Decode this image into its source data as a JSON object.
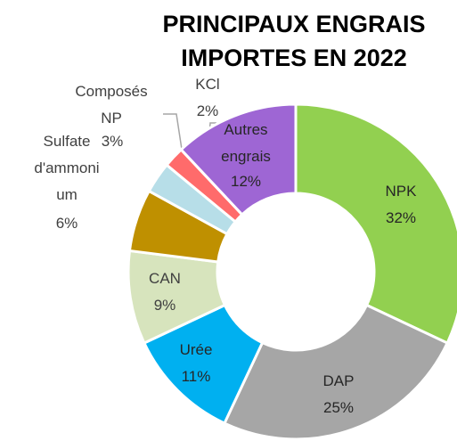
{
  "chart_data": {
    "type": "donut",
    "title": "PRINCIPAUX ENGRAIS IMPORTES EN 2022",
    "categories": [
      "NPK",
      "DAP",
      "Urée",
      "CAN",
      "Sulfate d'ammonium",
      "Composés NP",
      "KCl",
      "Autres engrais"
    ],
    "values": [
      32,
      25,
      11,
      9,
      6,
      3,
      2,
      12
    ],
    "value_labels": [
      "32%",
      "25%",
      "11%",
      "9%",
      "6%",
      "3%",
      "2%",
      "12%"
    ],
    "colors": [
      "#92d050",
      "#a6a6a6",
      "#00b0f0",
      "#d7e4bd",
      "#bf9000",
      "#b7dee8",
      "#ff6b6b",
      "#9e66d4"
    ]
  }
}
